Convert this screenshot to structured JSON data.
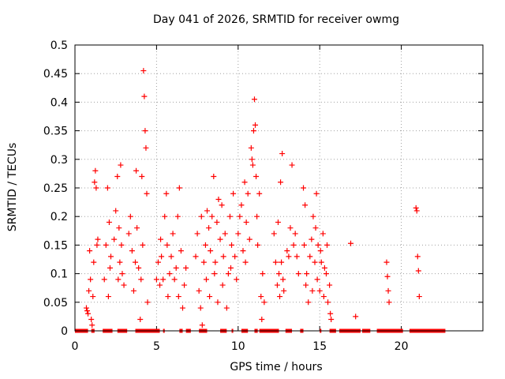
{
  "chart_data": {
    "type": "scatter",
    "title": "Day 041 of 2026, SRMTID for receiver owmg",
    "xlabel": "GPS time / hours",
    "ylabel": "SRMTID / TECUs",
    "xlim": [
      0,
      25
    ],
    "ylim": [
      0,
      0.5
    ],
    "xticks": [
      0,
      5,
      10,
      15,
      20
    ],
    "yticks": [
      0,
      0.05,
      0.1,
      0.15,
      0.2,
      0.25,
      0.3,
      0.35,
      0.4,
      0.45,
      0.5
    ],
    "grid": true,
    "marker": "+",
    "marker_color": "#ff0000",
    "series": [
      {
        "name": "SRMTID",
        "points": [
          [
            0.7,
            0.04
          ],
          [
            0.75,
            0.035
          ],
          [
            0.8,
            0.03
          ],
          [
            0.85,
            0.07
          ],
          [
            0.9,
            0.14
          ],
          [
            0.95,
            0.09
          ],
          [
            1.0,
            0.02
          ],
          [
            1.05,
            0.01
          ],
          [
            1.1,
            0.06
          ],
          [
            1.15,
            0.12
          ],
          [
            1.2,
            0.26
          ],
          [
            1.25,
            0.28
          ],
          [
            1.3,
            0.25
          ],
          [
            1.35,
            0.15
          ],
          [
            1.4,
            0.16
          ],
          [
            1.8,
            0.09
          ],
          [
            1.9,
            0.15
          ],
          [
            2.0,
            0.25
          ],
          [
            2.05,
            0.06
          ],
          [
            2.1,
            0.19
          ],
          [
            2.15,
            0.11
          ],
          [
            2.2,
            0.13
          ],
          [
            2.4,
            0.16
          ],
          [
            2.5,
            0.21
          ],
          [
            2.6,
            0.27
          ],
          [
            2.65,
            0.09
          ],
          [
            2.7,
            0.18
          ],
          [
            2.75,
            0.12
          ],
          [
            2.8,
            0.29
          ],
          [
            2.85,
            0.15
          ],
          [
            2.9,
            0.1
          ],
          [
            3.0,
            0.08
          ],
          [
            3.3,
            0.17
          ],
          [
            3.4,
            0.2
          ],
          [
            3.5,
            0.14
          ],
          [
            3.6,
            0.07
          ],
          [
            3.7,
            0.12
          ],
          [
            3.75,
            0.28
          ],
          [
            3.8,
            0.18
          ],
          [
            3.9,
            0.11
          ],
          [
            4.0,
            0.02
          ],
          [
            4.05,
            0.09
          ],
          [
            4.1,
            0.27
          ],
          [
            4.15,
            0.15
          ],
          [
            4.2,
            0.455
          ],
          [
            4.25,
            0.41
          ],
          [
            4.3,
            0.35
          ],
          [
            4.35,
            0.32
          ],
          [
            4.4,
            0.24
          ],
          [
            4.45,
            0.05
          ],
          [
            5.0,
            0.09
          ],
          [
            5.1,
            0.12
          ],
          [
            5.2,
            0.08
          ],
          [
            5.25,
            0.16
          ],
          [
            5.3,
            0.13
          ],
          [
            5.4,
            0.09
          ],
          [
            5.5,
            0.2
          ],
          [
            5.6,
            0.24
          ],
          [
            5.65,
            0.15
          ],
          [
            5.7,
            0.06
          ],
          [
            5.8,
            0.1
          ],
          [
            5.9,
            0.13
          ],
          [
            6.0,
            0.17
          ],
          [
            6.1,
            0.09
          ],
          [
            6.2,
            0.11
          ],
          [
            6.3,
            0.2
          ],
          [
            6.35,
            0.06
          ],
          [
            6.4,
            0.25
          ],
          [
            6.5,
            0.14
          ],
          [
            6.6,
            0.04
          ],
          [
            6.7,
            0.08
          ],
          [
            6.8,
            0.11
          ],
          [
            7.4,
            0.13
          ],
          [
            7.5,
            0.17
          ],
          [
            7.6,
            0.07
          ],
          [
            7.7,
            0.04
          ],
          [
            7.75,
            0.2
          ],
          [
            7.8,
            0.01
          ],
          [
            7.9,
            0.12
          ],
          [
            8.0,
            0.15
          ],
          [
            8.05,
            0.09
          ],
          [
            8.1,
            0.21
          ],
          [
            8.2,
            0.18
          ],
          [
            8.25,
            0.06
          ],
          [
            8.3,
            0.14
          ],
          [
            8.4,
            0.2
          ],
          [
            8.5,
            0.27
          ],
          [
            8.55,
            0.1
          ],
          [
            8.6,
            0.12
          ],
          [
            8.7,
            0.19
          ],
          [
            8.75,
            0.05
          ],
          [
            8.8,
            0.23
          ],
          [
            8.9,
            0.16
          ],
          [
            9.0,
            0.22
          ],
          [
            9.05,
            0.08
          ],
          [
            9.1,
            0.13
          ],
          [
            9.2,
            0.17
          ],
          [
            9.3,
            0.04
          ],
          [
            9.4,
            0.1
          ],
          [
            9.5,
            0.2
          ],
          [
            9.55,
            0.11
          ],
          [
            9.6,
            0.15
          ],
          [
            9.7,
            0.24
          ],
          [
            9.8,
            0.13
          ],
          [
            9.9,
            0.09
          ],
          [
            10.0,
            0.17
          ],
          [
            10.1,
            0.2
          ],
          [
            10.2,
            0.22
          ],
          [
            10.3,
            0.14
          ],
          [
            10.4,
            0.26
          ],
          [
            10.45,
            0.12
          ],
          [
            10.5,
            0.19
          ],
          [
            10.6,
            0.24
          ],
          [
            10.7,
            0.16
          ],
          [
            10.8,
            0.32
          ],
          [
            10.85,
            0.3
          ],
          [
            10.9,
            0.29
          ],
          [
            10.95,
            0.35
          ],
          [
            11.0,
            0.405
          ],
          [
            11.05,
            0.36
          ],
          [
            11.1,
            0.27
          ],
          [
            11.15,
            0.2
          ],
          [
            11.2,
            0.15
          ],
          [
            11.3,
            0.24
          ],
          [
            11.4,
            0.06
          ],
          [
            11.45,
            0.02
          ],
          [
            11.5,
            0.1
          ],
          [
            11.6,
            0.05
          ],
          [
            12.2,
            0.17
          ],
          [
            12.3,
            0.12
          ],
          [
            12.4,
            0.08
          ],
          [
            12.45,
            0.19
          ],
          [
            12.5,
            0.1
          ],
          [
            12.55,
            0.06
          ],
          [
            12.6,
            0.26
          ],
          [
            12.65,
            0.12
          ],
          [
            12.7,
            0.31
          ],
          [
            12.75,
            0.09
          ],
          [
            12.8,
            0.07
          ],
          [
            13.0,
            0.14
          ],
          [
            13.1,
            0.13
          ],
          [
            13.2,
            0.18
          ],
          [
            13.3,
            0.29
          ],
          [
            13.4,
            0.15
          ],
          [
            13.5,
            0.17
          ],
          [
            13.6,
            0.13
          ],
          [
            13.7,
            0.1
          ],
          [
            14.0,
            0.25
          ],
          [
            14.05,
            0.15
          ],
          [
            14.1,
            0.22
          ],
          [
            14.15,
            0.08
          ],
          [
            14.2,
            0.1
          ],
          [
            14.3,
            0.05
          ],
          [
            14.4,
            0.13
          ],
          [
            14.5,
            0.16
          ],
          [
            14.55,
            0.07
          ],
          [
            14.6,
            0.2
          ],
          [
            14.7,
            0.12
          ],
          [
            14.75,
            0.18
          ],
          [
            14.8,
            0.24
          ],
          [
            14.85,
            0.09
          ],
          [
            14.9,
            0.15
          ],
          [
            15.0,
            0.07
          ],
          [
            15.05,
            0.14
          ],
          [
            15.1,
            0.12
          ],
          [
            15.2,
            0.17
          ],
          [
            15.25,
            0.06
          ],
          [
            15.3,
            0.11
          ],
          [
            15.4,
            0.1
          ],
          [
            15.45,
            0.15
          ],
          [
            15.5,
            0.05
          ],
          [
            15.6,
            0.08
          ],
          [
            15.65,
            0.03
          ],
          [
            15.7,
            0.02
          ],
          [
            16.9,
            0.153
          ],
          [
            17.2,
            0.025
          ],
          [
            19.1,
            0.12
          ],
          [
            19.15,
            0.095
          ],
          [
            19.2,
            0.07
          ],
          [
            19.25,
            0.05
          ],
          [
            20.9,
            0.215
          ],
          [
            20.95,
            0.21
          ],
          [
            21.0,
            0.13
          ],
          [
            21.05,
            0.105
          ],
          [
            21.1,
            0.06
          ]
        ]
      }
    ],
    "zero_segments": [
      [
        0.0,
        0.8
      ],
      [
        1.0,
        1.2
      ],
      [
        1.7,
        2.3
      ],
      [
        2.6,
        3.2
      ],
      [
        3.7,
        5.2
      ],
      [
        5.4,
        5.5
      ],
      [
        6.4,
        6.6
      ],
      [
        6.8,
        7.1
      ],
      [
        7.6,
        8.1
      ],
      [
        8.9,
        9.3
      ],
      [
        9.6,
        9.7
      ],
      [
        10.2,
        10.6
      ],
      [
        11.0,
        11.2
      ],
      [
        11.3,
        12.5
      ],
      [
        12.9,
        13.3
      ],
      [
        13.8,
        14.0
      ],
      [
        15.0,
        15.1
      ],
      [
        15.6,
        16.0
      ],
      [
        16.2,
        17.5
      ],
      [
        17.6,
        18.1
      ],
      [
        18.5,
        20.1
      ],
      [
        20.5,
        22.7
      ]
    ]
  }
}
